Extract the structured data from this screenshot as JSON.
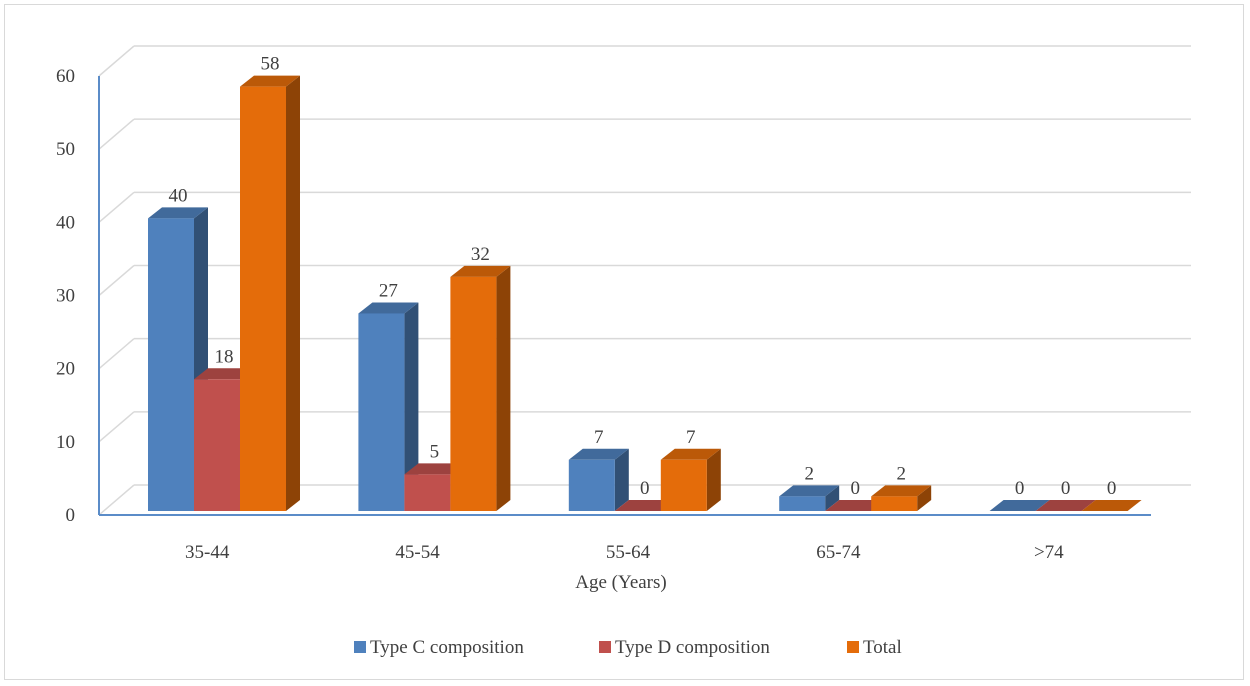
{
  "chart_data": {
    "type": "bar",
    "title": "",
    "xlabel": "Age (Years)",
    "ylabel": "",
    "categories": [
      "35-44",
      "45-54",
      "55-64",
      "65-74",
      ">74"
    ],
    "series": [
      {
        "name": "Type C composition",
        "values": [
          40,
          27,
          7,
          2,
          0
        ],
        "color": "#4F81BD"
      },
      {
        "name": "Type D composition",
        "values": [
          18,
          5,
          0,
          0,
          0
        ],
        "color": "#C0504D"
      },
      {
        "name": "Total",
        "values": [
          58,
          32,
          7,
          2,
          0
        ],
        "color": "#E46C0A"
      }
    ],
    "ylim": [
      0,
      60
    ],
    "yticks": [
      "0",
      "10",
      "20",
      "30",
      "40",
      "50",
      "60"
    ],
    "grid": true,
    "data_labels": true,
    "three_d": true,
    "legend_position": "bottom"
  }
}
